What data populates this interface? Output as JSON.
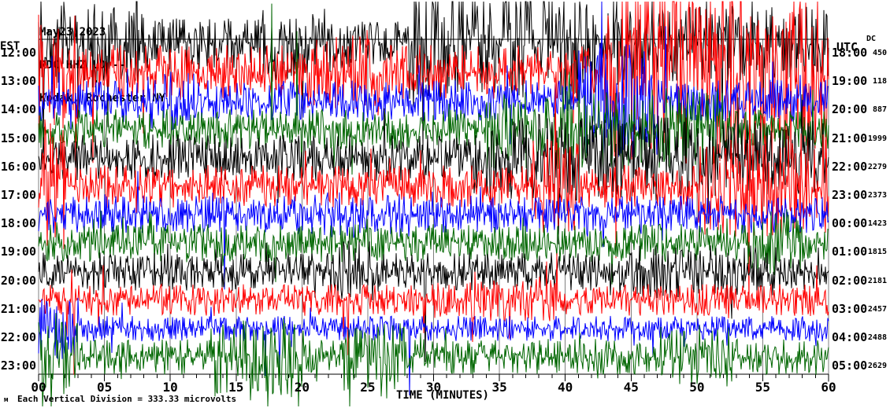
{
  "header": {
    "date": "May23,2023",
    "station": "RDC HHZ LD --",
    "location": "Kodak, Rochester NY"
  },
  "left_axis": {
    "title": "EST"
  },
  "right_axis": {
    "title": "UTC",
    "dc_title": "DC"
  },
  "x_axis": {
    "title": "TIME (MINUTES)",
    "tick_labels": [
      "00",
      "05",
      "10",
      "15",
      "20",
      "25",
      "30",
      "35",
      "40",
      "45",
      "50",
      "55",
      "60"
    ],
    "major_tick_minutes": 5,
    "minor_tick_minutes": 1
  },
  "footer": {
    "marker": "м",
    "note": "Each Vertical Division = 333.33 microvolts"
  },
  "colors": {
    "trace_black": "#000000",
    "trace_red": "#ff0000",
    "trace_blue": "#0000ff",
    "trace_green": "#006600",
    "grid": "#808080",
    "axis": "#000000",
    "background": "#ffffff"
  },
  "chart_data": {
    "type": "line",
    "subtype": "helicorder-seismogram",
    "title": "May23,2023 RDC HHZ LD --",
    "xlabel": "TIME (MINUTES)",
    "x_range": [
      0,
      60
    ],
    "grid": "vertical-5min",
    "vertical_division_microvolts": 333.33,
    "rows": [
      {
        "est": "12:00",
        "utc": "18:00",
        "dc": "450",
        "color": "trace_black",
        "base_amp": 24,
        "bursts": [
          [
            0,
            8,
            42
          ],
          [
            16,
            22,
            34
          ],
          [
            28,
            44,
            62
          ],
          [
            44,
            60,
            36
          ]
        ],
        "spikes": [
          [
            36.6,
            75,
            -1
          ]
        ]
      },
      {
        "est": "13:00",
        "utc": "19:00",
        "dc": "118",
        "color": "trace_red",
        "base_amp": 26,
        "bursts": [
          [
            0,
            3,
            55
          ],
          [
            20,
            26,
            35
          ],
          [
            43,
            60,
            92
          ]
        ],
        "spikes": [
          [
            2.8,
            135,
            1
          ],
          [
            4.1,
            115,
            1
          ],
          [
            45.5,
            95,
            -1
          ],
          [
            52,
            100,
            -1
          ]
        ]
      },
      {
        "est": "14:00",
        "utc": "20:00",
        "dc": "887",
        "color": "trace_blue",
        "base_amp": 20,
        "bursts": [
          [
            8,
            12,
            28
          ],
          [
            41,
            47,
            55
          ]
        ],
        "spikes": [
          [
            42.8,
            130,
            -1
          ],
          [
            47.6,
            95,
            -1
          ]
        ]
      },
      {
        "est": "15:00",
        "utc": "21:00",
        "dc": "1999",
        "color": "trace_green",
        "base_amp": 19,
        "bursts": [
          [
            34,
            52,
            40
          ]
        ],
        "spikes": [
          [
            17.7,
            160,
            -1
          ],
          [
            19.6,
            125,
            -1
          ]
        ]
      },
      {
        "est": "16:00",
        "utc": "22:00",
        "dc": "2279",
        "color": "trace_black",
        "base_amp": 22,
        "bursts": [
          [
            34,
            50,
            42
          ],
          [
            50,
            60,
            36
          ]
        ],
        "spikes": [
          [
            49.3,
            60,
            1
          ]
        ]
      },
      {
        "est": "17:00",
        "utc": "23:00",
        "dc": "2373",
        "color": "trace_red",
        "base_amp": 20,
        "bursts": [
          [
            0,
            2,
            60
          ],
          [
            37,
            41,
            45
          ],
          [
            50,
            60,
            50
          ]
        ],
        "spikes": [
          [
            0.5,
            85,
            -1
          ],
          [
            0.9,
            80,
            -1
          ]
        ]
      },
      {
        "est": "18:00",
        "utc": "00:00",
        "dc": "1423",
        "color": "trace_blue",
        "base_amp": 18,
        "bursts": [
          [
            20,
            30,
            22
          ]
        ],
        "spikes": [
          [
            14.1,
            95,
            1
          ]
        ]
      },
      {
        "est": "19:00",
        "utc": "01:00",
        "dc": "1815",
        "color": "trace_green",
        "base_amp": 18,
        "bursts": [
          [
            54,
            58,
            30
          ]
        ],
        "spikes": []
      },
      {
        "est": "20:00",
        "utc": "02:00",
        "dc": "2181",
        "color": "trace_black",
        "base_amp": 18,
        "bursts": [
          [
            22,
            26,
            30
          ],
          [
            45,
            56,
            26
          ]
        ],
        "spikes": [
          [
            29.4,
            115,
            1
          ]
        ]
      },
      {
        "est": "21:00",
        "utc": "03:00",
        "dc": "2457",
        "color": "trace_red",
        "base_amp": 15,
        "bursts": [
          [
            30,
            40,
            20
          ]
        ],
        "spikes": [
          [
            2.7,
            95,
            1
          ],
          [
            23.5,
            70,
            1
          ]
        ]
      },
      {
        "est": "22:00",
        "utc": "04:00",
        "dc": "2488",
        "color": "trace_blue",
        "base_amp": 12,
        "bursts": [
          [
            0,
            3,
            30
          ]
        ],
        "spikes": [
          [
            17.2,
            60,
            1
          ],
          [
            18.3,
            55,
            1
          ],
          [
            28.2,
            85,
            1
          ]
        ]
      },
      {
        "est": "23:00",
        "utc": "05:00",
        "dc": "2629",
        "color": "trace_green",
        "base_amp": 17,
        "bursts": [
          [
            0,
            3,
            36
          ],
          [
            13,
            20,
            38
          ],
          [
            23,
            28,
            32
          ],
          [
            47,
            53,
            30
          ]
        ],
        "spikes": [
          [
            14.3,
            45,
            1
          ],
          [
            16.1,
            55,
            1
          ],
          [
            17.4,
            70,
            1
          ],
          [
            23.6,
            68,
            1
          ],
          [
            26,
            50,
            1
          ]
        ]
      }
    ]
  }
}
